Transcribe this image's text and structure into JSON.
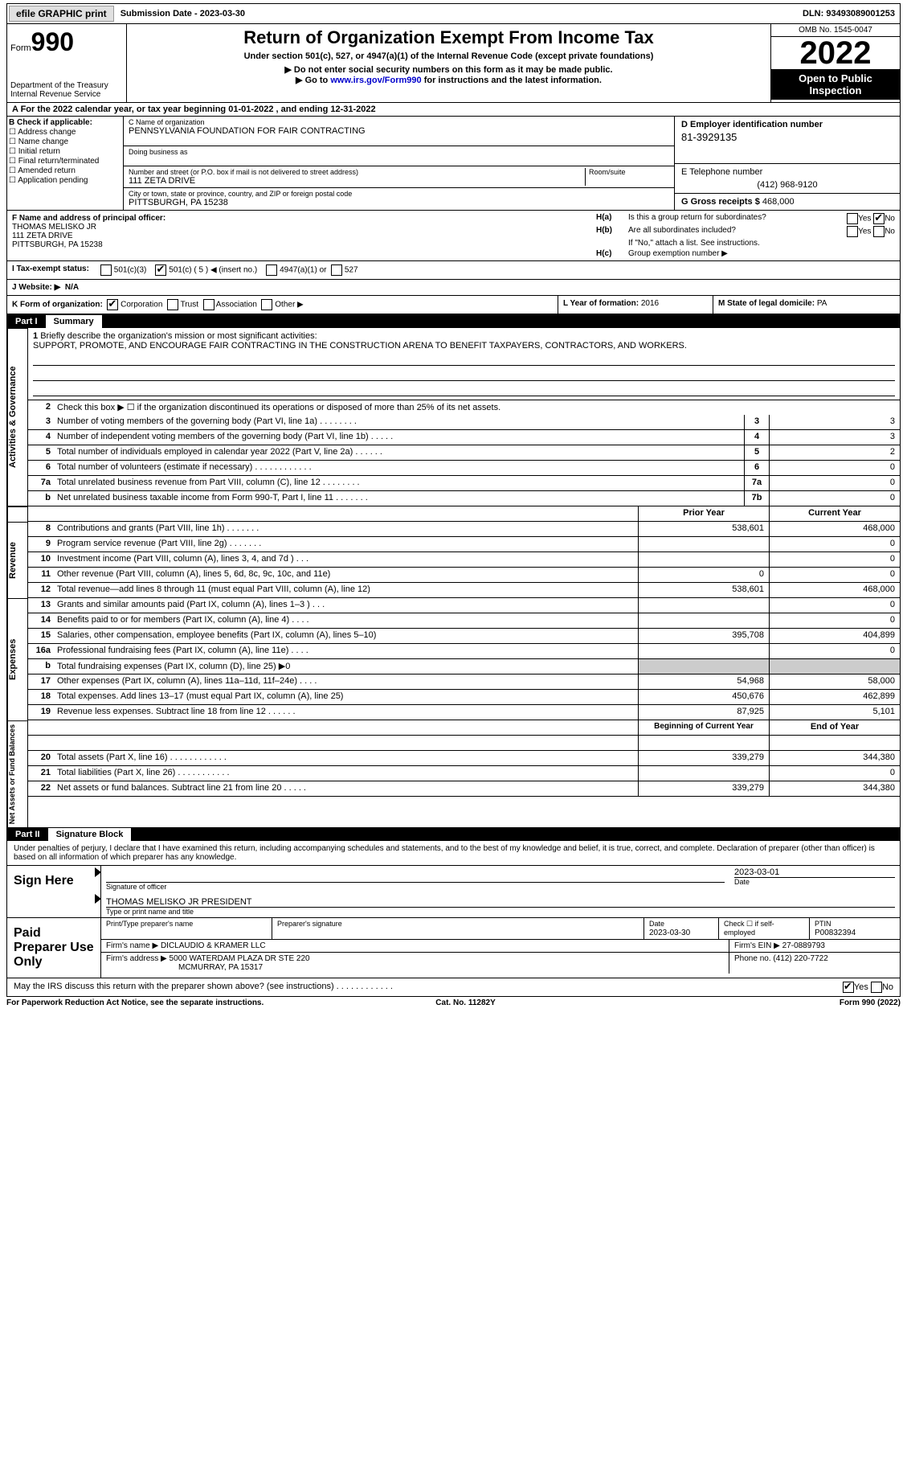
{
  "top": {
    "efile": "efile GRAPHIC print",
    "submission_label": "Submission Date - ",
    "submission_date": "2023-03-30",
    "dln_label": "DLN: ",
    "dln": "93493089001253"
  },
  "header": {
    "form_label": "Form",
    "form_no": "990",
    "dept": "Department of the Treasury",
    "irs": "Internal Revenue Service",
    "title": "Return of Organization Exempt From Income Tax",
    "subtitle": "Under section 501(c), 527, or 4947(a)(1) of the Internal Revenue Code (except private foundations)",
    "instr1": "▶ Do not enter social security numbers on this form as it may be made public.",
    "instr2_pre": "▶ Go to ",
    "instr2_link": "www.irs.gov/Form990",
    "instr2_post": " for instructions and the latest information.",
    "omb": "OMB No. 1545-0047",
    "year": "2022",
    "open": "Open to Public Inspection"
  },
  "A": {
    "text_pre": "A For the 2022 calendar year, or tax year beginning ",
    "begin": "01-01-2022",
    "mid": "   , and ending ",
    "end": "12-31-2022"
  },
  "B": {
    "label": "B Check if applicable:",
    "opts": [
      "Address change",
      "Name change",
      "Initial return",
      "Final return/terminated",
      "Amended return",
      "Application pending"
    ]
  },
  "C": {
    "name_label": "C Name of organization",
    "name": "PENNSYLVANIA FOUNDATION FOR FAIR CONTRACTING",
    "dba_label": "Doing business as",
    "street_label": "Number and street (or P.O. box if mail is not delivered to street address)",
    "room_label": "Room/suite",
    "street": "111 ZETA DRIVE",
    "city_label": "City or town, state or province, country, and ZIP or foreign postal code",
    "city": "PITTSBURGH, PA  15238"
  },
  "D": {
    "label": "D Employer identification number",
    "ein": "81-3929135"
  },
  "E": {
    "label": "E Telephone number",
    "phone": "(412) 968-9120"
  },
  "G": {
    "label": "G Gross receipts $ ",
    "val": "468,000"
  },
  "F": {
    "label": "F  Name and address of principal officer:",
    "name": "THOMAS MELISKO JR",
    "addr1": "111 ZETA DRIVE",
    "addr2": "PITTSBURGH, PA  15238"
  },
  "H": {
    "a_label": "H(a)",
    "a_text": "Is this a group return for subordinates?",
    "b_label": "H(b)",
    "b_text": "Are all subordinates included?",
    "note": "If \"No,\" attach a list. See instructions.",
    "c_label": "H(c)",
    "c_text": "Group exemption number ▶",
    "yes": "Yes",
    "no": "No"
  },
  "I": {
    "label": "I   Tax-exempt status:",
    "o1": "501(c)(3)",
    "o2": "501(c) ( 5 ) ◀ (insert no.)",
    "o3": "4947(a)(1) or",
    "o4": "527"
  },
  "J": {
    "label": "J   Website: ▶",
    "val": "N/A"
  },
  "K": {
    "label": "K Form of organization:",
    "opts": [
      "Corporation",
      "Trust",
      "Association",
      "Other ▶"
    ]
  },
  "L": {
    "label": "L Year of formation: ",
    "val": "2016"
  },
  "M": {
    "label": "M State of legal domicile: ",
    "val": "PA"
  },
  "part1": {
    "no": "Part I",
    "title": "Summary"
  },
  "mission": {
    "line_no": "1",
    "label": "Briefly describe the organization's mission or most significant activities:",
    "text": "SUPPORT, PROMOTE, AND ENCOURAGE FAIR CONTRACTING IN THE CONSTRUCTION ARENA TO BENEFIT TAXPAYERS, CONTRACTORS, AND WORKERS."
  },
  "lines_ag": [
    {
      "no": "2",
      "text": "Check this box ▶ ☐ if the organization discontinued its operations or disposed of more than 25% of its net assets."
    },
    {
      "no": "3",
      "text": "Number of voting members of the governing body (Part VI, line 1a)   .    .    .    .    .    .    .    .",
      "box": "3",
      "val": "3"
    },
    {
      "no": "4",
      "text": "Number of independent voting members of the governing body (Part VI, line 1b)   .    .    .    .    .",
      "box": "4",
      "val": "3"
    },
    {
      "no": "5",
      "text": "Total number of individuals employed in calendar year 2022 (Part V, line 2a)   .    .    .    .    .    .",
      "box": "5",
      "val": "2"
    },
    {
      "no": "6",
      "text": "Total number of volunteers (estimate if necessary)    .    .    .    .    .    .    .    .    .    .    .    .",
      "box": "6",
      "val": "0"
    },
    {
      "no": "7a",
      "text": "Total unrelated business revenue from Part VIII, column (C), line 12   .    .    .    .    .    .    .    .",
      "box": "7a",
      "val": "0"
    },
    {
      "no": "b",
      "text": "Net unrelated business taxable income from Form 990-T, Part I, line 11   .    .    .    .    .    .    .",
      "box": "7b",
      "val": "0"
    }
  ],
  "col_headers": {
    "prior": "Prior Year",
    "current": "Current Year"
  },
  "revenue": [
    {
      "no": "8",
      "text": "Contributions and grants (Part VIII, line 1h)    .    .    .    .    .    .    .",
      "prior": "538,601",
      "curr": "468,000"
    },
    {
      "no": "9",
      "text": "Program service revenue (Part VIII, line 2g)   .    .    .    .    .    .    .",
      "prior": "",
      "curr": "0"
    },
    {
      "no": "10",
      "text": "Investment income (Part VIII, column (A), lines 3, 4, and 7d )    .    .    .",
      "prior": "",
      "curr": "0"
    },
    {
      "no": "11",
      "text": "Other revenue (Part VIII, column (A), lines 5, 6d, 8c, 9c, 10c, and 11e)",
      "prior": "0",
      "curr": "0"
    },
    {
      "no": "12",
      "text": "Total revenue—add lines 8 through 11 (must equal Part VIII, column (A), line 12)",
      "prior": "538,601",
      "curr": "468,000"
    }
  ],
  "expenses": [
    {
      "no": "13",
      "text": "Grants and similar amounts paid (Part IX, column (A), lines 1–3 )   .    .    .",
      "prior": "",
      "curr": "0"
    },
    {
      "no": "14",
      "text": "Benefits paid to or for members (Part IX, column (A), line 4)   .    .    .    .",
      "prior": "",
      "curr": "0"
    },
    {
      "no": "15",
      "text": "Salaries, other compensation, employee benefits (Part IX, column (A), lines 5–10)",
      "prior": "395,708",
      "curr": "404,899"
    },
    {
      "no": "16a",
      "text": "Professional fundraising fees (Part IX, column (A), line 11e)   .    .    .    .",
      "prior": "",
      "curr": "0"
    },
    {
      "no": "b",
      "text": "Total fundraising expenses (Part IX, column (D), line 25) ▶0",
      "prior": "shaded",
      "curr": "shaded"
    },
    {
      "no": "17",
      "text": "Other expenses (Part IX, column (A), lines 11a–11d, 11f–24e)   .    .    .    .",
      "prior": "54,968",
      "curr": "58,000"
    },
    {
      "no": "18",
      "text": "Total expenses. Add lines 13–17 (must equal Part IX, column (A), line 25)",
      "prior": "450,676",
      "curr": "462,899"
    },
    {
      "no": "19",
      "text": "Revenue less expenses. Subtract line 18 from line 12   .    .    .    .    .    .",
      "prior": "87,925",
      "curr": "5,101"
    }
  ],
  "balance_headers": {
    "begin": "Beginning of Current Year",
    "end": "End of Year"
  },
  "balance": [
    {
      "no": "20",
      "text": "Total assets (Part X, line 16)   .    .    .    .    .    .    .    .    .    .    .    .",
      "prior": "339,279",
      "curr": "344,380"
    },
    {
      "no": "21",
      "text": "Total liabilities (Part X, line 26)    .    .    .    .    .    .    .    .    .    .    .",
      "prior": "",
      "curr": "0"
    },
    {
      "no": "22",
      "text": "Net assets or fund balances. Subtract line 21 from line 20   .    .    .    .    .",
      "prior": "339,279",
      "curr": "344,380"
    }
  ],
  "part2": {
    "no": "Part II",
    "title": "Signature Block"
  },
  "sig_text": "Under penalties of perjury, I declare that I have examined this return, including accompanying schedules and statements, and to the best of my knowledge and belief, it is true, correct, and complete. Declaration of preparer (other than officer) is based on all information of which preparer has any knowledge.",
  "sign": {
    "label": "Sign Here",
    "sig_officer": "Signature of officer",
    "date": "2023-03-01",
    "date_label": "Date",
    "name": "THOMAS MELISKO JR  PRESIDENT",
    "name_label": "Type or print name and title"
  },
  "preparer": {
    "label": "Paid Preparer Use Only",
    "print_label": "Print/Type preparer's name",
    "sig_label": "Preparer's signature",
    "date_label": "Date",
    "date": "2023-03-30",
    "check_label": "Check ☐ if self-employed",
    "ptin_label": "PTIN",
    "ptin": "P00832394",
    "firm_name_label": "Firm's name    ▶ ",
    "firm_name": "DICLAUDIO & KRAMER LLC",
    "firm_ein_label": "Firm's EIN ▶ ",
    "firm_ein": "27-0889793",
    "firm_addr_label": "Firm's address ▶ ",
    "firm_addr": "5000 WATERDAM PLAZA DR STE 220",
    "firm_city": "MCMURRAY, PA  15317",
    "phone_label": "Phone no. ",
    "phone": "(412) 220-7722"
  },
  "discuss": {
    "text": "May the IRS discuss this return with the preparer shown above? (see instructions)   .    .    .    .    .    .    .    .    .    .    .    .",
    "yes": "Yes",
    "no": "No"
  },
  "footer": {
    "left": "For Paperwork Reduction Act Notice, see the separate instructions.",
    "mid": "Cat. No. 11282Y",
    "right": "Form 990 (2022)"
  },
  "side_labels": {
    "ag": "Activities & Governance",
    "rev": "Revenue",
    "exp": "Expenses",
    "bal": "Net Assets or Fund Balances"
  }
}
